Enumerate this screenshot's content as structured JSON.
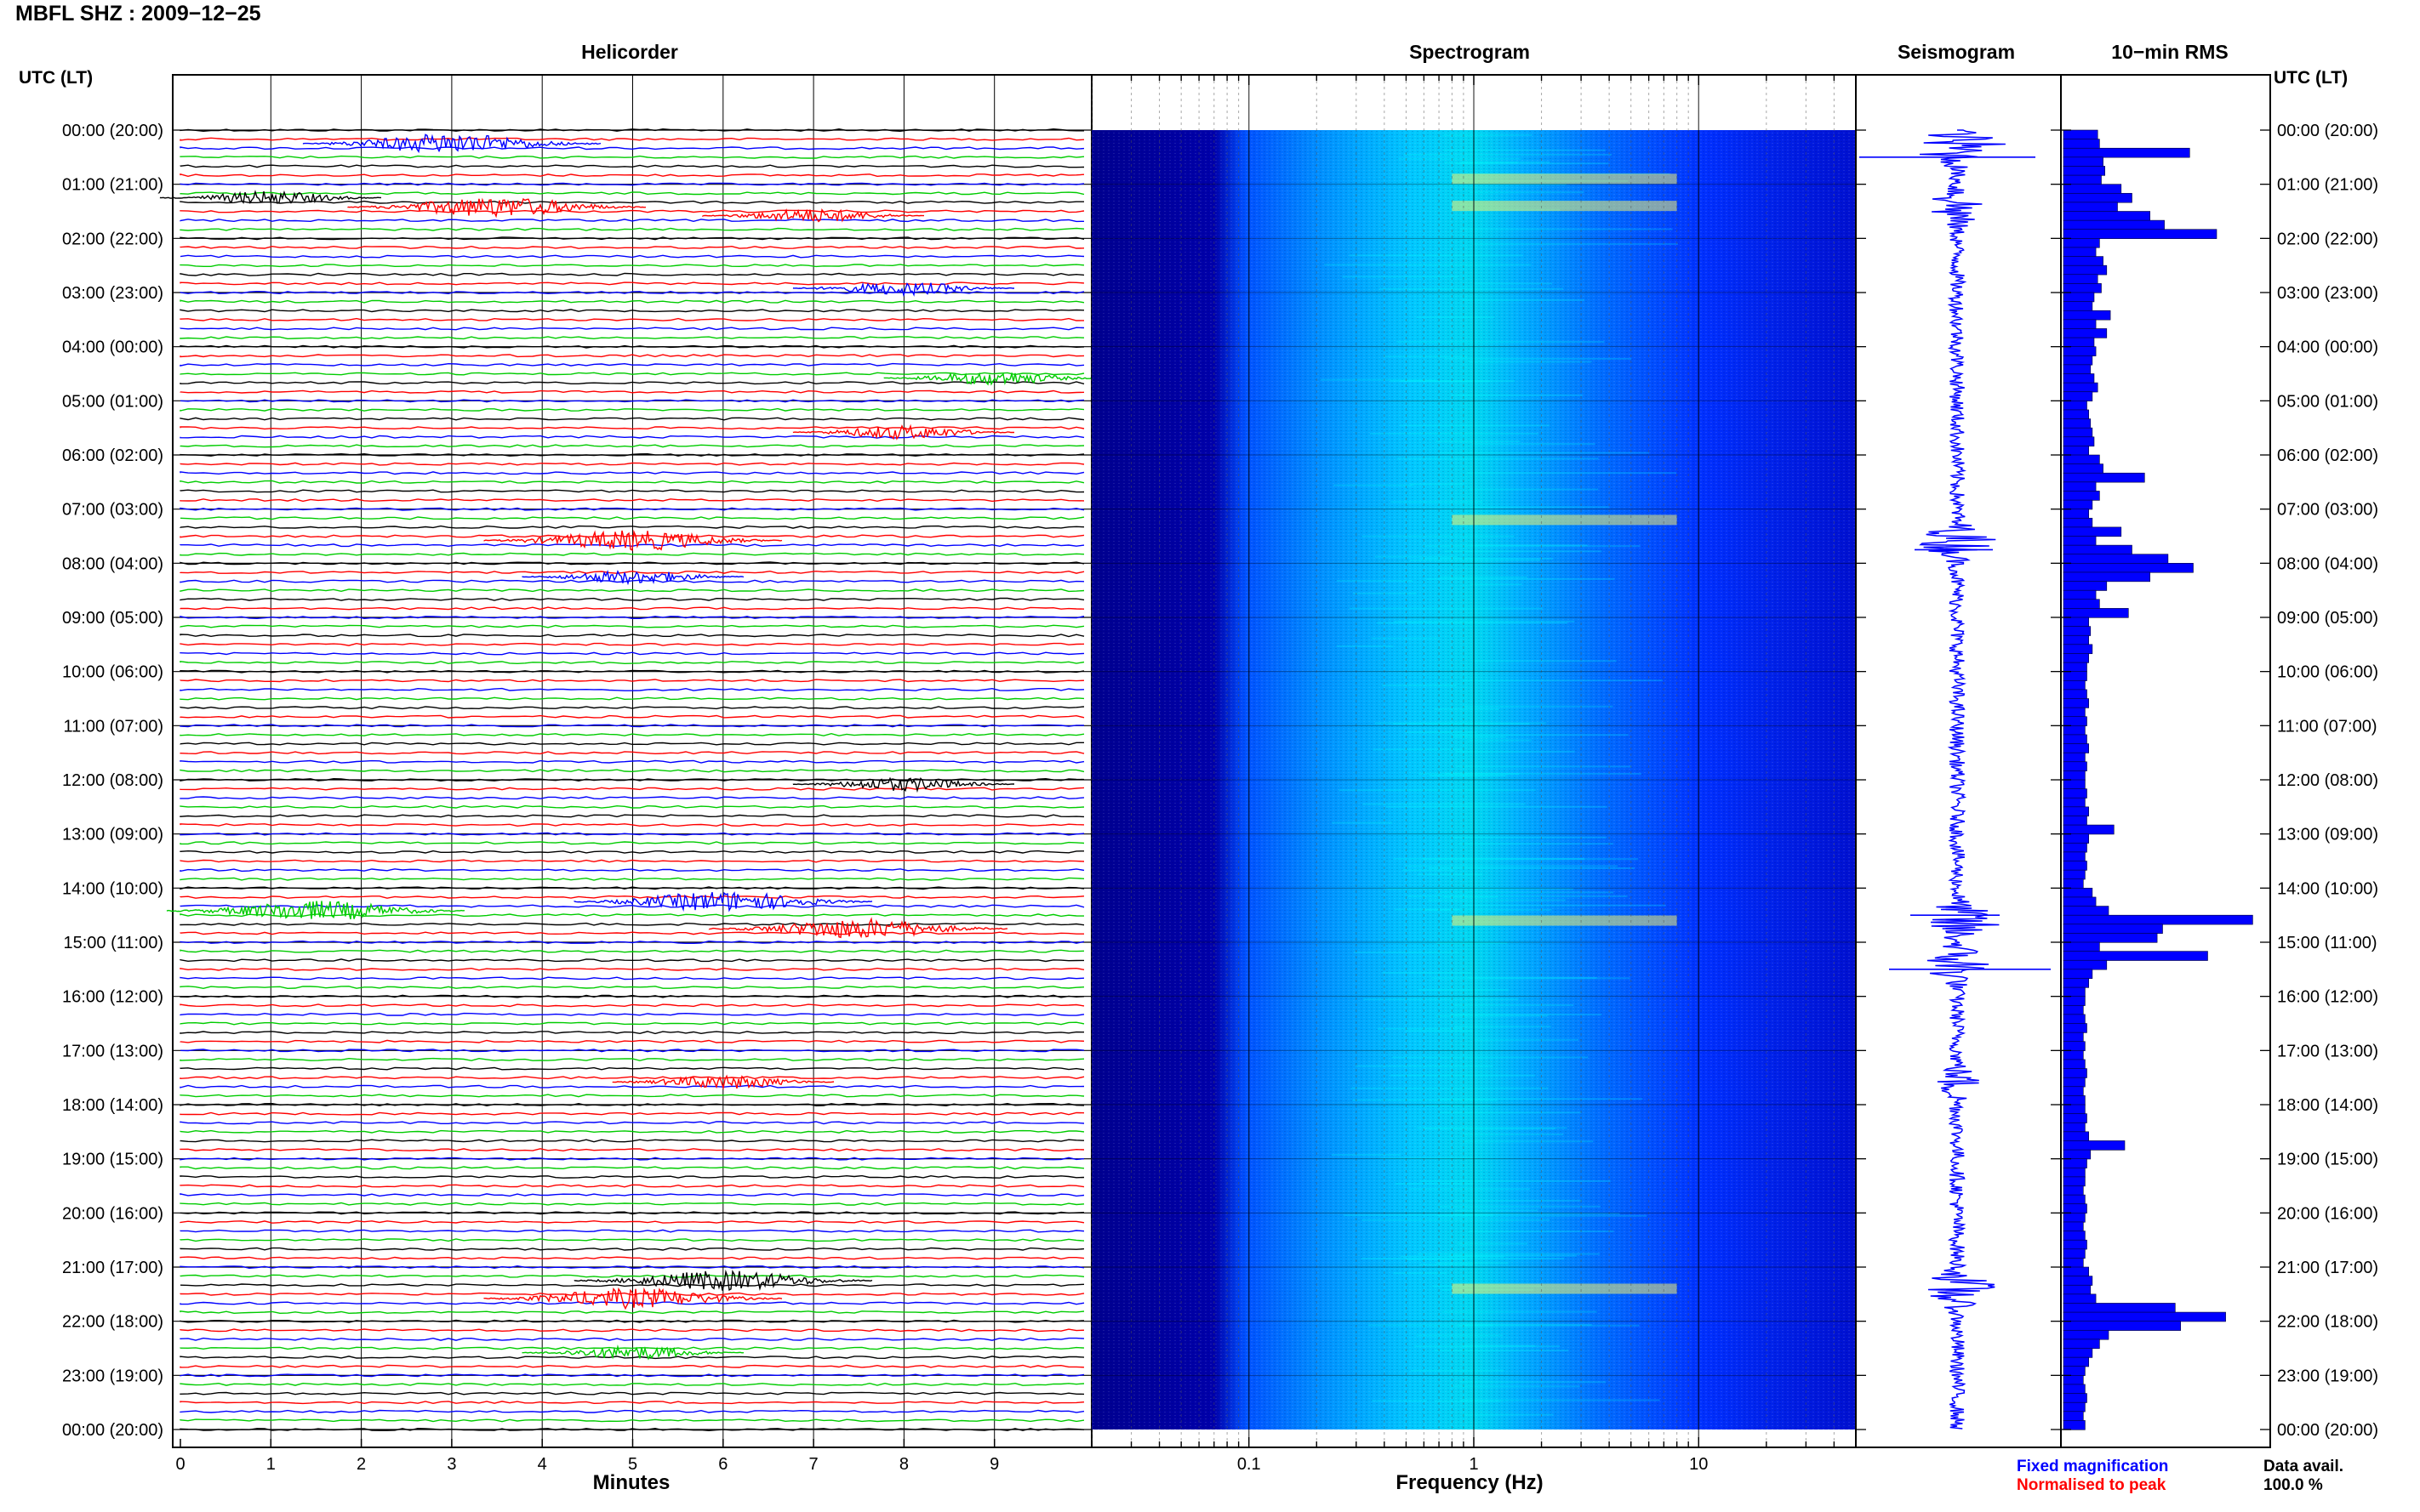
{
  "header": {
    "title": "MBFL SHZ : 2009−12−25"
  },
  "panels": {
    "helicorder": "Helicorder",
    "spectrogram": "Spectrogram",
    "seismogram": "Seismogram",
    "rms": "10−min RMS"
  },
  "axis": {
    "time_label_left": "UTC (LT)",
    "time_label_right": "UTC (LT)",
    "minutes_label": "Minutes",
    "frequency_label": "Frequency (Hz)"
  },
  "legend": {
    "fixed": "Fixed magnification",
    "normalised": "Normalised to peak",
    "fixed_color": "#0000ff",
    "normalised_color": "#ff0000"
  },
  "availability": {
    "label": "Data avail.",
    "value": "100.0 %"
  },
  "chart_data": [
    {
      "type": "line",
      "name": "helicorder",
      "x_ticks": [
        "0",
        "1",
        "2",
        "3",
        "4",
        "5",
        "6",
        "7",
        "8",
        "9"
      ],
      "x_range": [
        0,
        10
      ],
      "time_labels": [
        "00:00 (20:00)",
        "01:00 (21:00)",
        "02:00 (22:00)",
        "03:00 (23:00)",
        "04:00 (00:00)",
        "05:00 (01:00)",
        "06:00 (02:00)",
        "07:00 (03:00)",
        "08:00 (04:00)",
        "09:00 (05:00)",
        "10:00 (06:00)",
        "11:00 (07:00)",
        "12:00 (08:00)",
        "13:00 (09:00)",
        "14:00 (10:00)",
        "15:00 (11:00)",
        "16:00 (12:00)",
        "17:00 (13:00)",
        "18:00 (14:00)",
        "19:00 (15:00)",
        "20:00 (16:00)",
        "21:00 (17:00)",
        "22:00 (18:00)",
        "23:00 (19:00)",
        "00:00 (20:00)"
      ],
      "trace_colors": [
        "#000000",
        "#ff0000",
        "#0000ff",
        "#00cc00"
      ],
      "events": [
        {
          "hour": 0.25,
          "minute": 3.0,
          "amp": 3
        },
        {
          "hour": 1.25,
          "minute": 1.0,
          "amp": 2
        },
        {
          "hour": 1.42,
          "minute": 3.5,
          "amp": 3
        },
        {
          "hour": 1.58,
          "minute": 7.0,
          "amp": 2
        },
        {
          "hour": 2.92,
          "minute": 8.0,
          "amp": 2
        },
        {
          "hour": 4.58,
          "minute": 9.0,
          "amp": 2
        },
        {
          "hour": 5.58,
          "minute": 8.0,
          "amp": 2
        },
        {
          "hour": 7.58,
          "minute": 5.0,
          "amp": 3
        },
        {
          "hour": 8.25,
          "minute": 5.0,
          "amp": 2
        },
        {
          "hour": 12.08,
          "minute": 8.0,
          "amp": 2
        },
        {
          "hour": 14.25,
          "minute": 6.0,
          "amp": 3
        },
        {
          "hour": 14.42,
          "minute": 1.5,
          "amp": 3
        },
        {
          "hour": 14.75,
          "minute": 7.5,
          "amp": 3
        },
        {
          "hour": 17.58,
          "minute": 6.0,
          "amp": 2
        },
        {
          "hour": 21.25,
          "minute": 6.0,
          "amp": 3
        },
        {
          "hour": 21.58,
          "minute": 5.0,
          "amp": 3
        },
        {
          "hour": 22.58,
          "minute": 5.0,
          "amp": 2
        }
      ]
    },
    {
      "type": "heatmap",
      "name": "spectrogram",
      "x_scale": "log",
      "x_range": [
        0.02,
        50
      ],
      "x_ticks": [
        "0.1",
        "1",
        "10"
      ],
      "y_range_hours": [
        0,
        24
      ],
      "colormap": [
        "#00008f",
        "#0000ff",
        "#0080ff",
        "#00ffff",
        "#ffff00"
      ]
    },
    {
      "type": "line",
      "name": "seismogram",
      "y_range_hours": [
        0,
        24
      ],
      "color": "#0000ff"
    },
    {
      "type": "bar",
      "name": "10-min RMS",
      "orientation": "horizontal",
      "interval_minutes": 10,
      "color": "#0000ff",
      "values": [
        19,
        20,
        70,
        22,
        23,
        21,
        32,
        38,
        30,
        48,
        56,
        85,
        20,
        18,
        22,
        24,
        19,
        21,
        17,
        16,
        26,
        18,
        24,
        17,
        18,
        16,
        15,
        17,
        19,
        16,
        13,
        14,
        15,
        16,
        17,
        14,
        20,
        22,
        45,
        18,
        20,
        16,
        14,
        16,
        32,
        18,
        38,
        58,
        72,
        48,
        24,
        18,
        20,
        36,
        14,
        15,
        14,
        16,
        14,
        13,
        13,
        12,
        13,
        14,
        12,
        13,
        12,
        13,
        14,
        12,
        13,
        12,
        12,
        13,
        12,
        14,
        13,
        28,
        14,
        13,
        12,
        13,
        12,
        11,
        16,
        18,
        25,
        105,
        55,
        52,
        20,
        80,
        24,
        16,
        14,
        12,
        12,
        11,
        12,
        13,
        11,
        12,
        11,
        12,
        13,
        12,
        11,
        12,
        12,
        13,
        12,
        14,
        34,
        15,
        13,
        12,
        12,
        11,
        12,
        13,
        12,
        11,
        12,
        13,
        12,
        11,
        14,
        16,
        15,
        18,
        62,
        90,
        65,
        25,
        20,
        16,
        14,
        12,
        11,
        12,
        13,
        12,
        11,
        12
      ]
    }
  ]
}
